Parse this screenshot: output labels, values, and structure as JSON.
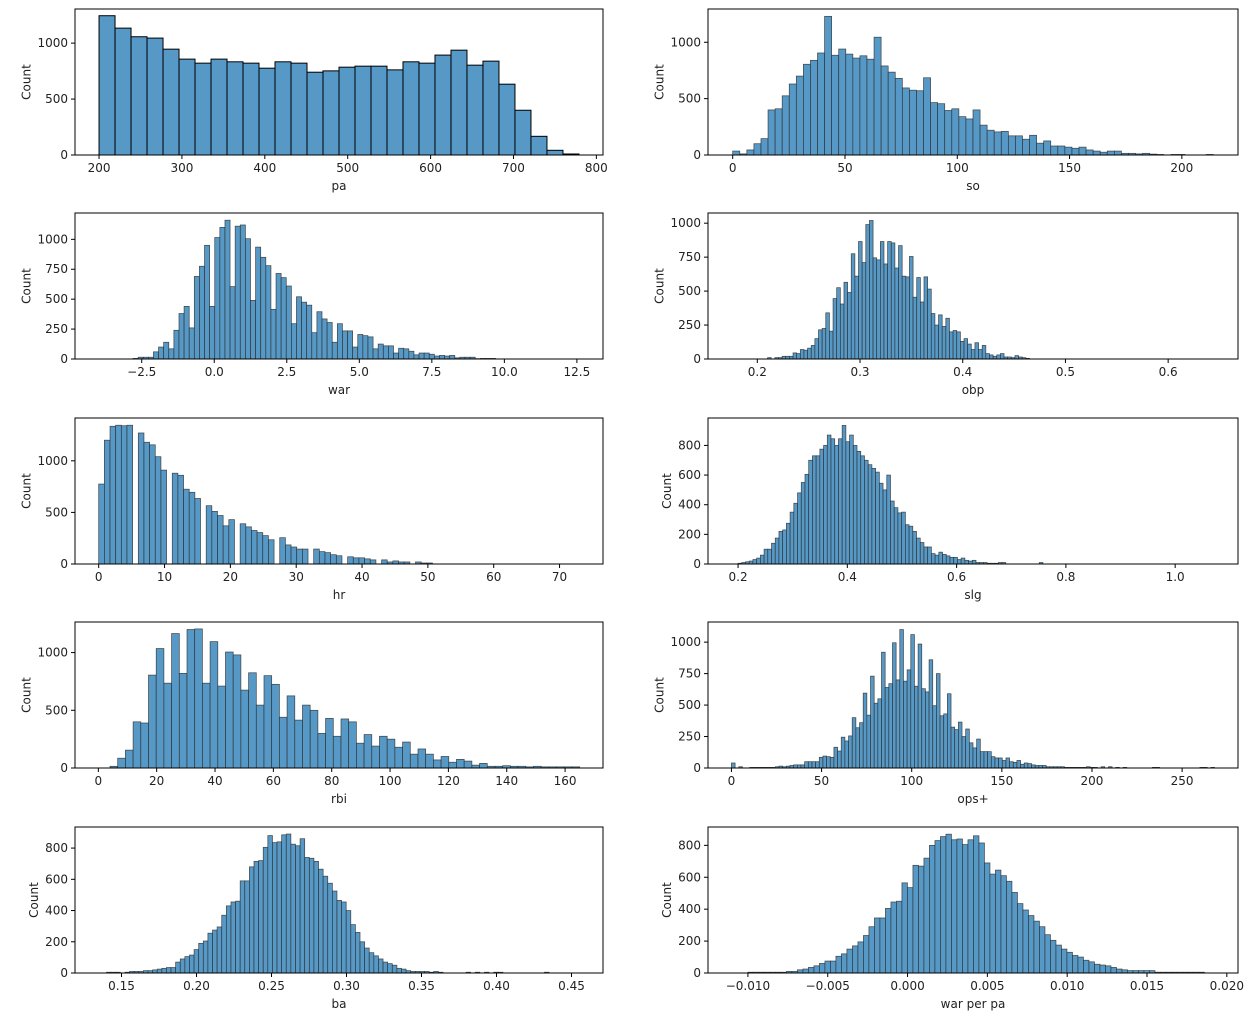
{
  "style": {
    "bar_fill": "#5799c6",
    "bar_edge": "#2b2b2b",
    "axes_color": "#000000",
    "grid": false
  },
  "chart_data": [
    {
      "type": "bar",
      "subtype": "histogram",
      "xlabel": "pa",
      "ylabel": "Count",
      "xlim": [
        171,
        808
      ],
      "ylim": [
        0,
        1305
      ],
      "xticks": [
        200,
        300,
        400,
        500,
        600,
        700,
        800
      ],
      "xtick_labels": [
        "200",
        "300",
        "400",
        "500",
        "600",
        "700",
        "800"
      ],
      "yticks": [
        0,
        500,
        1000
      ],
      "ytick_labels": [
        "0",
        "500",
        "1000"
      ],
      "bin_range": [
        200,
        779
      ],
      "edge": "#000000",
      "values": [
        1245,
        1134,
        1057,
        1045,
        946,
        857,
        821,
        857,
        833,
        821,
        776,
        833,
        821,
        740,
        752,
        785,
        794,
        794,
        761,
        833,
        821,
        893,
        937,
        803,
        839,
        633,
        400,
        167,
        42,
        9
      ]
    },
    {
      "type": "bar",
      "subtype": "histogram",
      "xlabel": "so",
      "ylabel": "Count",
      "xlim": [
        -11,
        225
      ],
      "ylim": [
        0,
        1295
      ],
      "xticks": [
        0,
        50,
        100,
        150,
        200
      ],
      "xtick_labels": [
        "0",
        "50",
        "100",
        "150",
        "200"
      ],
      "yticks": [
        0,
        500,
        1000
      ],
      "ytick_labels": [
        "0",
        "500",
        "1000"
      ],
      "bin_range": [
        0,
        214
      ],
      "values": [
        35,
        10,
        45,
        100,
        145,
        400,
        410,
        525,
        630,
        700,
        805,
        840,
        905,
        1230,
        885,
        940,
        895,
        860,
        880,
        850,
        1045,
        790,
        735,
        680,
        595,
        575,
        570,
        685,
        465,
        455,
        395,
        410,
        340,
        320,
        400,
        265,
        220,
        205,
        210,
        170,
        170,
        140,
        175,
        105,
        125,
        80,
        80,
        70,
        60,
        70,
        45,
        35,
        25,
        35,
        35,
        15,
        15,
        10,
        15,
        8,
        5,
        0,
        5,
        5,
        0,
        0,
        0,
        5
      ]
    },
    {
      "type": "bar",
      "subtype": "histogram",
      "xlabel": "war",
      "ylabel": "Count",
      "xlim": [
        -4.8,
        13.4
      ],
      "ylim": [
        0,
        1220
      ],
      "xticks": [
        -2.5,
        0,
        2.5,
        5,
        7.5,
        10,
        12.5
      ],
      "xtick_labels": [
        "−2.5",
        "0.0",
        "2.5",
        "5.0",
        "7.5",
        "10.0",
        "12.5"
      ],
      "yticks": [
        0,
        250,
        500,
        750,
        1000
      ],
      "ytick_labels": [
        "0",
        "250",
        "500",
        "750",
        "1000"
      ],
      "bin_range": [
        -2.8,
        9.7
      ],
      "values": [
        5,
        15,
        15,
        15,
        60,
        100,
        140,
        85,
        240,
        380,
        440,
        260,
        690,
        775,
        950,
        440,
        1015,
        1100,
        1160,
        605,
        1110,
        1120,
        1005,
        490,
        935,
        850,
        780,
        415,
        715,
        680,
        610,
        295,
        520,
        475,
        450,
        220,
        395,
        335,
        305,
        140,
        295,
        235,
        235,
        100,
        205,
        195,
        185,
        85,
        125,
        110,
        110,
        50,
        90,
        85,
        65,
        35,
        50,
        50,
        40,
        25,
        30,
        25,
        30,
        10,
        15,
        15,
        15,
        3,
        5,
        5,
        5
      ]
    },
    {
      "type": "bar",
      "subtype": "histogram",
      "xlabel": "obp",
      "ylabel": "Count",
      "xlim": [
        0.152,
        0.668
      ],
      "ylim": [
        0,
        1075
      ],
      "xticks": [
        0.2,
        0.3,
        0.4,
        0.5,
        0.6
      ],
      "xtick_labels": [
        "0.2",
        "0.3",
        "0.4",
        "0.5",
        "0.6"
      ],
      "yticks": [
        0,
        250,
        500,
        750,
        1000
      ],
      "ytick_labels": [
        "0",
        "250",
        "500",
        "750",
        "1000"
      ],
      "bin_range": [
        0.21,
        0.465
      ],
      "values": [
        10,
        0,
        10,
        10,
        20,
        20,
        20,
        45,
        40,
        70,
        65,
        80,
        100,
        150,
        215,
        225,
        340,
        205,
        445,
        525,
        405,
        565,
        490,
        775,
        610,
        865,
        710,
        990,
        1020,
        745,
        730,
        865,
        700,
        865,
        855,
        670,
        835,
        610,
        605,
        755,
        455,
        600,
        420,
        605,
        515,
        335,
        250,
        325,
        240,
        300,
        200,
        210,
        200,
        130,
        150,
        110,
        70,
        120,
        70,
        100,
        40,
        30,
        20,
        30,
        40,
        15,
        15,
        10,
        25,
        15,
        10,
        5
      ]
    },
    {
      "type": "bar",
      "subtype": "histogram",
      "xlabel": "hr",
      "ylabel": "Count",
      "xlim": [
        -3.6,
        76.6
      ],
      "ylim": [
        0,
        1415
      ],
      "xticks": [
        0,
        10,
        20,
        30,
        40,
        50,
        60,
        70
      ],
      "xtick_labels": [
        "0",
        "10",
        "20",
        "30",
        "40",
        "50",
        "60",
        "70"
      ],
      "yticks": [
        0,
        500,
        1000
      ],
      "ytick_labels": [
        "0",
        "500",
        "1000"
      ],
      "bin_range": [
        0,
        50.7
      ],
      "values": [
        775,
        1200,
        1335,
        1345,
        1340,
        1345,
        0,
        1270,
        1180,
        1155,
        1040,
        910,
        0,
        880,
        860,
        725,
        695,
        635,
        0,
        565,
        510,
        470,
        370,
        430,
        0,
        390,
        360,
        325,
        305,
        275,
        235,
        0,
        255,
        185,
        165,
        145,
        145,
        0,
        145,
        120,
        110,
        90,
        80,
        0,
        70,
        60,
        60,
        50,
        40,
        0,
        40,
        20,
        30,
        20,
        20,
        0,
        20,
        10,
        10
      ]
    },
    {
      "type": "bar",
      "subtype": "histogram",
      "xlabel": "slg",
      "ylabel": "Count",
      "xlim": [
        0.145,
        1.115
      ],
      "ylim": [
        0,
        985
      ],
      "xticks": [
        0.2,
        0.4,
        0.6,
        0.8,
        1.0
      ],
      "xtick_labels": [
        "0.2",
        "0.4",
        "0.6",
        "0.8",
        "1.0"
      ],
      "yticks": [
        0,
        200,
        400,
        600,
        800
      ],
      "ytick_labels": [
        "0",
        "200",
        "400",
        "600",
        "800"
      ],
      "bin_range": [
        0.2,
        0.758
      ],
      "values": [
        5,
        10,
        15,
        20,
        30,
        40,
        60,
        100,
        100,
        140,
        175,
        220,
        230,
        275,
        350,
        410,
        480,
        550,
        605,
        700,
        730,
        730,
        775,
        800,
        870,
        845,
        800,
        845,
        935,
        825,
        870,
        800,
        760,
        730,
        700,
        670,
        645,
        620,
        545,
        500,
        600,
        425,
        380,
        345,
        350,
        265,
        255,
        220,
        175,
        145,
        115,
        115,
        70,
        60,
        80,
        65,
        55,
        45,
        45,
        30,
        40,
        25,
        20,
        25,
        10,
        10,
        10,
        5,
        5,
        5,
        10,
        10,
        0,
        0,
        0,
        0,
        0,
        0,
        0,
        0,
        0,
        10
      ]
    },
    {
      "type": "bar",
      "subtype": "histogram",
      "xlabel": "rbi",
      "ylabel": "Count",
      "xlim": [
        -8,
        173
      ],
      "ylim": [
        0,
        1265
      ],
      "xticks": [
        0,
        20,
        40,
        60,
        80,
        100,
        120,
        140,
        160
      ],
      "xtick_labels": [
        "0",
        "20",
        "40",
        "60",
        "80",
        "100",
        "120",
        "140",
        "160"
      ],
      "yticks": [
        0,
        500,
        1000
      ],
      "ytick_labels": [
        "0",
        "500",
        "1000"
      ],
      "bin_range": [
        4,
        165
      ],
      "values": [
        15,
        85,
        155,
        400,
        390,
        805,
        1035,
        735,
        1165,
        820,
        1200,
        1205,
        735,
        1095,
        710,
        1005,
        980,
        675,
        825,
        545,
        800,
        725,
        440,
        625,
        415,
        545,
        500,
        300,
        430,
        275,
        425,
        400,
        215,
        290,
        190,
        275,
        250,
        180,
        225,
        120,
        165,
        120,
        70,
        100,
        50,
        75,
        60,
        25,
        40,
        15,
        15,
        20,
        15,
        15,
        10,
        15,
        10,
        10,
        10,
        10,
        10
      ]
    },
    {
      "type": "bar",
      "subtype": "histogram",
      "xlabel": "ops+",
      "ylabel": "Count",
      "xlim": [
        -13,
        281
      ],
      "ylim": [
        0,
        1160
      ],
      "xticks": [
        0,
        50,
        100,
        150,
        200,
        250
      ],
      "xtick_labels": [
        "0",
        "50",
        "100",
        "150",
        "200",
        "250"
      ],
      "yticks": [
        0,
        250,
        500,
        750,
        1000
      ],
      "ytick_labels": [
        "0",
        "250",
        "500",
        "750",
        "1000"
      ],
      "bin_range": [
        0,
        268
      ],
      "values": [
        40,
        0,
        10,
        0,
        0,
        5,
        5,
        5,
        5,
        5,
        5,
        5,
        10,
        15,
        10,
        15,
        20,
        25,
        25,
        25,
        50,
        50,
        50,
        50,
        85,
        95,
        90,
        85,
        165,
        135,
        245,
        215,
        255,
        400,
        320,
        360,
        595,
        420,
        730,
        515,
        550,
        920,
        640,
        670,
        995,
        700,
        1100,
        690,
        780,
        1060,
        650,
        985,
        630,
        605,
        860,
        495,
        750,
        415,
        430,
        590,
        325,
        305,
        365,
        250,
        310,
        200,
        160,
        230,
        130,
        130,
        130,
        90,
        80,
        80,
        60,
        80,
        50,
        45,
        60,
        30,
        40,
        35,
        25,
        20,
        20,
        20,
        10,
        10,
        10,
        10,
        10,
        5,
        5,
        5,
        5,
        5,
        5,
        10,
        5,
        5,
        0,
        10,
        0,
        10,
        0,
        5,
        0,
        5,
        0,
        0,
        0,
        0,
        0,
        0,
        0,
        5,
        5,
        0,
        0,
        0,
        0,
        0,
        0,
        0,
        0,
        0,
        0,
        0,
        5,
        5,
        0,
        5
      ]
    },
    {
      "type": "bar",
      "subtype": "histogram",
      "xlabel": "ba",
      "ylabel": "Count",
      "xlim": [
        0.119,
        0.471
      ],
      "ylim": [
        0,
        935
      ],
      "xticks": [
        0.15,
        0.2,
        0.25,
        0.3,
        0.35,
        0.4,
        0.45
      ],
      "xtick_labels": [
        "0.15",
        "0.20",
        "0.25",
        "0.30",
        "0.35",
        "0.40",
        "0.45"
      ],
      "yticks": [
        0,
        200,
        400,
        600,
        800
      ],
      "ytick_labels": [
        "0",
        "200",
        "400",
        "600",
        "800"
      ],
      "bin_range": [
        0.14,
        0.435
      ],
      "values": [
        5,
        5,
        5,
        0,
        5,
        10,
        10,
        10,
        15,
        15,
        20,
        25,
        30,
        35,
        35,
        70,
        90,
        105,
        115,
        150,
        190,
        205,
        255,
        275,
        295,
        370,
        430,
        455,
        460,
        590,
        590,
        680,
        715,
        720,
        805,
        880,
        835,
        840,
        885,
        890,
        825,
        815,
        860,
        740,
        735,
        715,
        665,
        620,
        575,
        525,
        465,
        455,
        400,
        310,
        260,
        200,
        160,
        130,
        110,
        90,
        70,
        60,
        50,
        30,
        25,
        15,
        10,
        10,
        10,
        10,
        5,
        10,
        5,
        0,
        0,
        0,
        0,
        0,
        5,
        0,
        5,
        0,
        5,
        0,
        5,
        5,
        0,
        0,
        0,
        0,
        0,
        0,
        0,
        0,
        0,
        5
      ]
    },
    {
      "type": "bar",
      "subtype": "histogram",
      "xlabel": "war per pa",
      "ylabel": "Count",
      "xlim": [
        -0.0125,
        0.0207
      ],
      "ylim": [
        0,
        915
      ],
      "xticks": [
        -0.01,
        -0.005,
        0,
        0.005,
        0.01,
        0.015,
        0.02
      ],
      "xtick_labels": [
        "−0.010",
        "−0.005",
        "0.000",
        "0.005",
        "0.010",
        "0.015",
        "0.020"
      ],
      "yticks": [
        0,
        200,
        400,
        600,
        800
      ],
      "ytick_labels": [
        "0",
        "200",
        "400",
        "600",
        "800"
      ],
      "bin_range": [
        -0.01,
        0.0186
      ],
      "values": [
        5,
        5,
        5,
        5,
        5,
        5,
        5,
        10,
        10,
        20,
        25,
        35,
        45,
        60,
        75,
        75,
        105,
        120,
        150,
        170,
        195,
        235,
        290,
        345,
        345,
        405,
        445,
        450,
        565,
        535,
        675,
        670,
        720,
        800,
        830,
        855,
        870,
        835,
        840,
        805,
        835,
        860,
        815,
        690,
        620,
        645,
        610,
        575,
        505,
        435,
        395,
        360,
        325,
        290,
        240,
        205,
        175,
        150,
        130,
        110,
        100,
        80,
        70,
        55,
        50,
        45,
        35,
        25,
        20,
        15,
        15,
        15,
        15,
        15,
        5,
        5,
        5,
        5,
        5,
        5,
        5,
        5,
        5
      ]
    }
  ]
}
